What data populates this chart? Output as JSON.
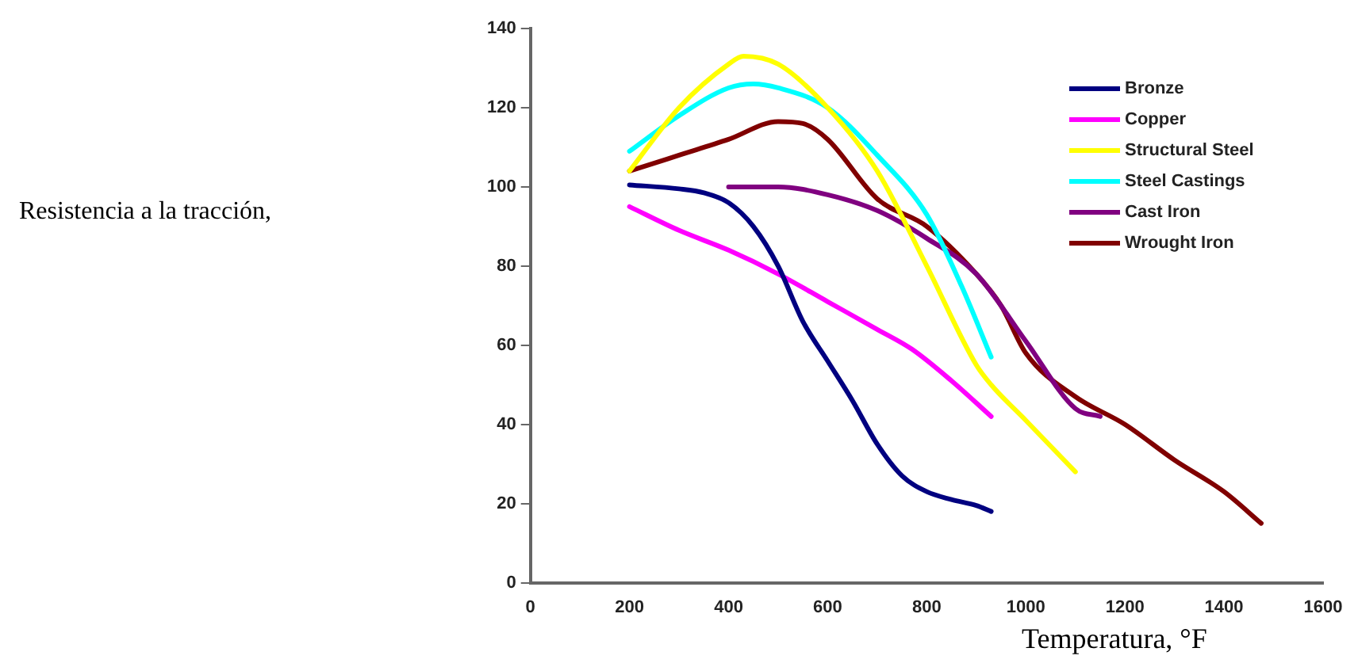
{
  "chart_data": {
    "type": "line",
    "annotations": [
      "Resistencia a la tracción,"
    ],
    "xlabel": "Temperatura, °F",
    "xlim": [
      0,
      1600
    ],
    "xticks": [
      0,
      200,
      400,
      600,
      800,
      1000,
      1200,
      1400,
      1600
    ],
    "ylim": [
      0,
      140
    ],
    "yticks": [
      0,
      20,
      40,
      60,
      80,
      100,
      120,
      140
    ],
    "grid": false,
    "legend": "top right",
    "marker": "none",
    "line_style": "solid",
    "series": [
      {
        "name": "Bronze",
        "color": "#000080",
        "x": [
          200,
          300,
          350,
          400,
          450,
          500,
          550,
          600,
          650,
          700,
          750,
          800,
          850,
          900,
          930
        ],
        "values": [
          100.5,
          99.5,
          98.5,
          96,
          90,
          80,
          66,
          56,
          46,
          35,
          27,
          23,
          21,
          19.5,
          18
        ]
      },
      {
        "name": "Copper",
        "color": "#ff00ff",
        "x": [
          200,
          300,
          400,
          500,
          600,
          700,
          770,
          850,
          930
        ],
        "values": [
          95,
          89,
          84,
          78,
          71,
          64,
          59,
          51,
          42
        ]
      },
      {
        "name": "Structural Steel",
        "color": "#ffff00",
        "x": [
          200,
          300,
          400,
          430,
          500,
          600,
          700,
          800,
          900,
          930,
          1000,
          1100
        ],
        "values": [
          104,
          120,
          131,
          133,
          131,
          120,
          104,
          80,
          55,
          50,
          41,
          28
        ]
      },
      {
        "name": "Steel Castings",
        "color": "#00ffff",
        "x": [
          200,
          300,
          400,
          450,
          500,
          600,
          700,
          800,
          870,
          930
        ],
        "values": [
          109,
          118,
          125,
          126,
          125,
          120,
          108,
          93,
          75,
          57
        ]
      },
      {
        "name": "Cast Iron",
        "color": "#800080",
        "x": [
          400,
          500,
          600,
          700,
          800,
          900,
          1000,
          1100,
          1150
        ],
        "values": [
          100,
          100,
          98,
          94,
          87,
          78,
          61,
          44,
          42
        ]
      },
      {
        "name": "Wrought Iron",
        "color": "#800000",
        "x": [
          200,
          300,
          400,
          500,
          550,
          600,
          700,
          800,
          900,
          950,
          1000,
          1100,
          1200,
          1300,
          1400,
          1475
        ],
        "values": [
          104,
          108,
          112,
          116.5,
          116,
          112,
          97,
          90,
          78,
          70,
          58,
          47,
          40,
          31,
          23,
          15
        ]
      }
    ]
  }
}
